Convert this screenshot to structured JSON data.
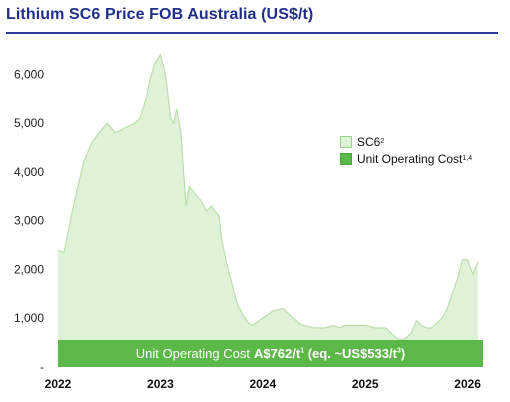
{
  "title": "Lithium SC6 Price FOB Australia (US$/t)",
  "legend": {
    "sc6_label": "SC6",
    "sc6_sup": "2",
    "cost_label": "Unit Operating Cost",
    "cost_sup": "1,4"
  },
  "banner": {
    "text": "Unit Operating Cost",
    "value": "A$762/t",
    "value_sup": "1",
    "equiv": "(eq. ~US$533/t",
    "equiv_sup": "3",
    "equiv_close": ")"
  },
  "colors": {
    "area_fill": "#dff1d7",
    "area_line": "#b9e0ab",
    "cost_band": "#5cb848",
    "title": "#1f2f8a"
  },
  "chart_data": {
    "type": "area",
    "title": "Lithium SC6 Price FOB Australia (US$/t)",
    "xlabel": "",
    "ylabel": "",
    "ylim": [
      0,
      6500
    ],
    "xlim": [
      2022.0,
      2026.15
    ],
    "grid": false,
    "legend_position": "right",
    "y_ticks": [
      0,
      1000,
      2000,
      3000,
      4000,
      5000,
      6000
    ],
    "y_tick_labels": [
      "-",
      "1,000",
      "2,000",
      "3,000",
      "4,000",
      "5,000",
      "6,000"
    ],
    "x_ticks": [
      2022,
      2023,
      2024,
      2025,
      2026
    ],
    "x_tick_labels": [
      "2022",
      "2023",
      "2024",
      "2025",
      "2026"
    ],
    "series": [
      {
        "name": "SC6",
        "x": [
          2022.0,
          2022.06,
          2022.15,
          2022.25,
          2022.33,
          2022.4,
          2022.48,
          2022.56,
          2022.65,
          2022.75,
          2022.8,
          2022.86,
          2022.9,
          2022.94,
          2023.0,
          2023.05,
          2023.1,
          2023.13,
          2023.16,
          2023.2,
          2023.25,
          2023.28,
          2023.32,
          2023.36,
          2023.4,
          2023.45,
          2023.5,
          2023.53,
          2023.57,
          2023.6,
          2023.65,
          2023.7,
          2023.75,
          2023.8,
          2023.86,
          2023.9,
          2024.0,
          2024.1,
          2024.2,
          2024.25,
          2024.3,
          2024.35,
          2024.4,
          2024.5,
          2024.6,
          2024.7,
          2024.75,
          2024.8,
          2024.9,
          2025.0,
          2025.1,
          2025.2,
          2025.3,
          2025.35,
          2025.4,
          2025.45,
          2025.5,
          2025.55,
          2025.6,
          2025.65,
          2025.7,
          2025.75,
          2025.8,
          2025.85,
          2025.9,
          2025.95,
          2026.0,
          2026.05,
          2026.1
        ],
        "values": [
          2400,
          2350,
          3300,
          4200,
          4600,
          4800,
          5000,
          4800,
          4900,
          5000,
          5100,
          5500,
          5900,
          6200,
          6400,
          6000,
          5100,
          5000,
          5300,
          4800,
          3300,
          3700,
          3600,
          3500,
          3400,
          3200,
          3300,
          3200,
          3100,
          2600,
          2100,
          1700,
          1300,
          1100,
          900,
          850,
          1000,
          1150,
          1200,
          1100,
          1000,
          900,
          850,
          800,
          800,
          850,
          800,
          850,
          850,
          850,
          800,
          800,
          600,
          550,
          600,
          700,
          950,
          850,
          800,
          800,
          900,
          1000,
          1200,
          1500,
          1800,
          2200,
          2200,
          1900,
          2150
        ]
      },
      {
        "name": "Unit Operating Cost",
        "value": 533
      }
    ]
  }
}
